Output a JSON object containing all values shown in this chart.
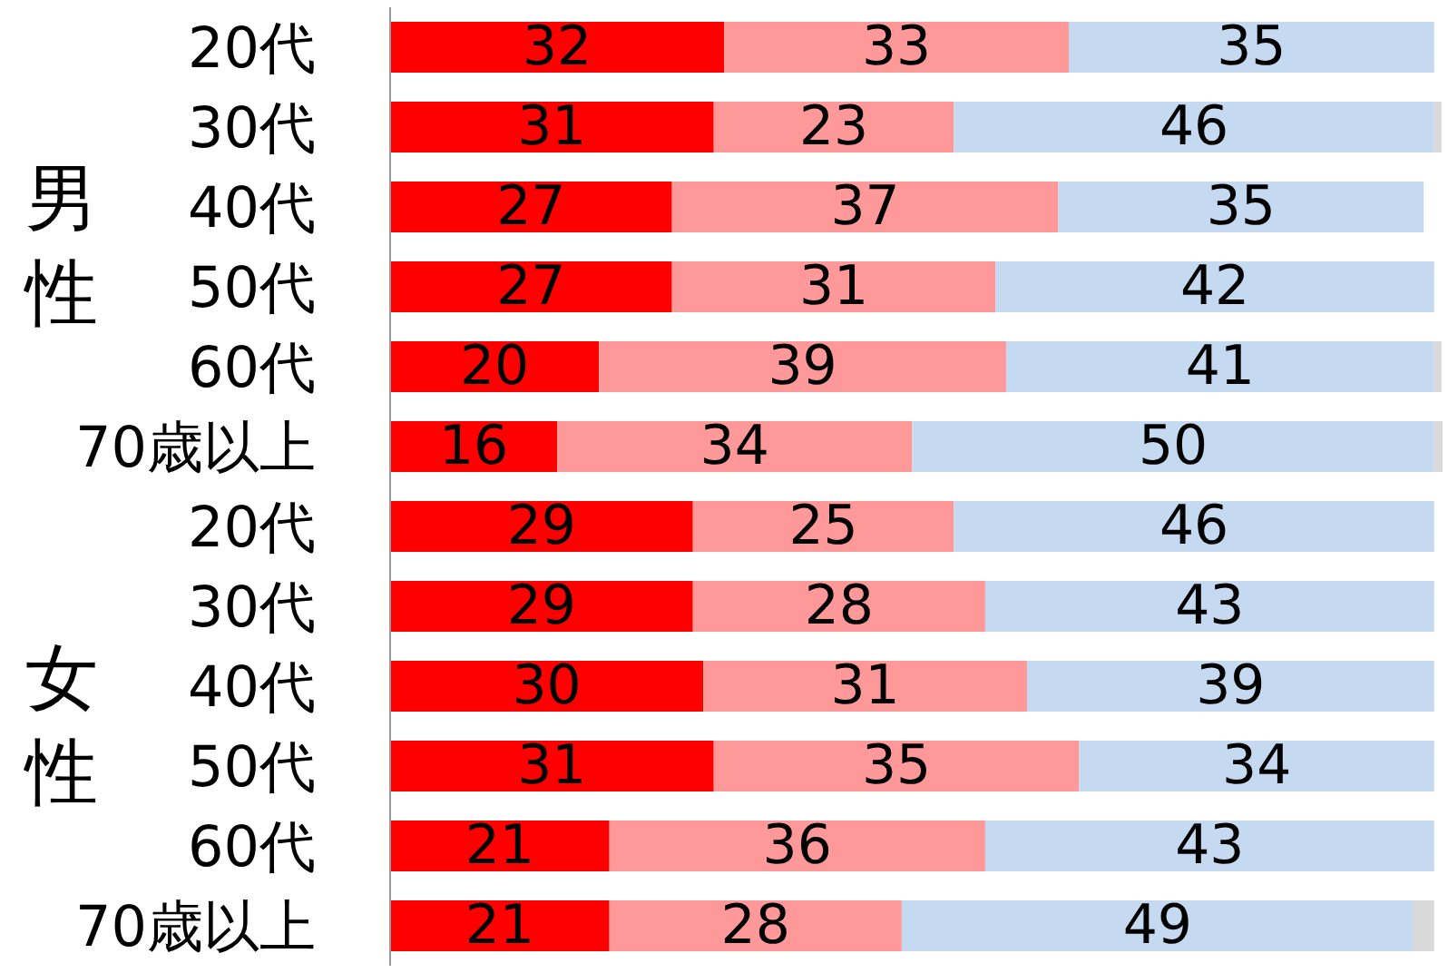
{
  "chart_data": {
    "type": "bar",
    "orientation": "horizontal",
    "stacked": true,
    "categories": [
      "20代",
      "30代",
      "40代",
      "50代",
      "60代",
      "70歳以上",
      "20代",
      "30代",
      "40代",
      "50代",
      "60代",
      "70歳以上"
    ],
    "annotations": [
      "男性",
      "女性"
    ],
    "series": [
      {
        "color": "#ff0000",
        "values": [
          32,
          31,
          27,
          27,
          20,
          16,
          29,
          29,
          30,
          31,
          21,
          21
        ],
        "value_labels": [
          "32",
          "31",
          "27",
          "27",
          "20",
          "16",
          "29",
          "29",
          "30",
          "31",
          "21",
          "21"
        ]
      },
      {
        "color": "#ff9999",
        "values": [
          33,
          23,
          37,
          31,
          39,
          34,
          25,
          28,
          31,
          35,
          36,
          28
        ],
        "value_labels": [
          "33",
          "23",
          "37",
          "31",
          "39",
          "34",
          "25",
          "28",
          "31",
          "35",
          "36",
          "28"
        ]
      },
      {
        "color": "#c5d9f1",
        "values": [
          35,
          46,
          35,
          42,
          41,
          50,
          46,
          43,
          39,
          34,
          43,
          49
        ],
        "value_labels": [
          "35",
          "46",
          "35",
          "42",
          "41",
          "50",
          "46",
          "43",
          "39",
          "34",
          "43",
          "49"
        ]
      },
      {
        "color": "#d9d9d9",
        "values": [
          null,
          0.7,
          null,
          null,
          0.7,
          0.8,
          null,
          null,
          null,
          null,
          null,
          2
        ],
        "value_labels": [
          null,
          null,
          null,
          null,
          null,
          null,
          null,
          null,
          null,
          null,
          null,
          null
        ]
      }
    ]
  }
}
